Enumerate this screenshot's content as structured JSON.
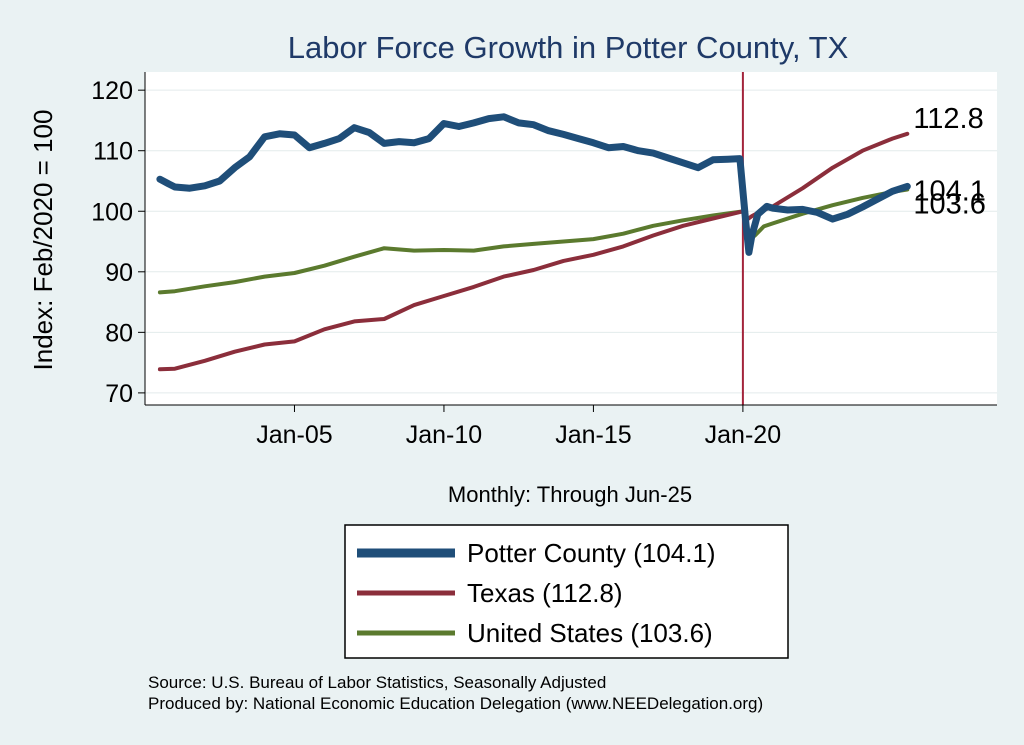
{
  "chart_data": {
    "type": "line",
    "title": "Labor Force Growth in Potter  County, TX",
    "ylabel": "Index: Feb/2020 = 100",
    "xlabel": "Monthly: Through Jun-25",
    "ylim": [
      68,
      123
    ],
    "xlim": [
      2000.0,
      2028.5
    ],
    "yticks": [
      70,
      80,
      90,
      100,
      110,
      120
    ],
    "xticks": [
      {
        "label": "Jan-05",
        "value": 2005.0
      },
      {
        "label": "Jan-10",
        "value": 2010.0
      },
      {
        "label": "Jan-15",
        "value": 2015.0
      },
      {
        "label": "Jan-20",
        "value": 2020.0
      }
    ],
    "reference_line": {
      "x": 2020.0,
      "color": "#a3243b"
    },
    "series": [
      {
        "name": "Potter  County",
        "legend": "Potter  County (104.1)",
        "end_value": "104.1",
        "color": "#1f4e79",
        "width": 7,
        "x": [
          2000.5,
          2000.8,
          2001.0,
          2001.5,
          2002.0,
          2002.5,
          2003.0,
          2003.5,
          2004.0,
          2004.5,
          2005.0,
          2005.5,
          2006.0,
          2006.5,
          2007.0,
          2007.5,
          2008.0,
          2008.5,
          2009.0,
          2009.5,
          2010.0,
          2010.5,
          2011.0,
          2011.5,
          2012.0,
          2012.5,
          2013.0,
          2013.5,
          2014.0,
          2014.5,
          2015.0,
          2015.5,
          2016.0,
          2016.5,
          2017.0,
          2017.5,
          2018.0,
          2018.5,
          2019.0,
          2019.5,
          2019.9,
          2020.1,
          2020.2,
          2020.3,
          2020.5,
          2020.8,
          2021.0,
          2021.5,
          2022.0,
          2022.5,
          2023.0,
          2023.5,
          2024.0,
          2024.5,
          2025.0,
          2025.5
        ],
        "y": [
          105.3,
          104.5,
          104.0,
          103.8,
          104.2,
          105.0,
          107.2,
          109.0,
          112.3,
          112.8,
          112.6,
          110.5,
          111.2,
          112.0,
          113.8,
          113.0,
          111.2,
          111.5,
          111.3,
          112.0,
          114.5,
          114.0,
          114.6,
          115.3,
          115.6,
          114.6,
          114.3,
          113.3,
          112.7,
          112.0,
          111.3,
          110.5,
          110.7,
          110.0,
          109.6,
          108.8,
          108.0,
          107.2,
          108.5,
          108.6,
          108.7,
          98.0,
          93.2,
          96.0,
          99.5,
          100.8,
          100.5,
          100.2,
          100.3,
          99.8,
          98.7,
          99.5,
          100.7,
          102.0,
          103.3,
          104.1
        ]
      },
      {
        "name": "Texas",
        "legend": "Texas (112.8)",
        "end_value": "112.8",
        "color": "#8b2e3b",
        "width": 4,
        "x": [
          2000.5,
          2001.0,
          2002.0,
          2003.0,
          2004.0,
          2005.0,
          2006.0,
          2007.0,
          2008.0,
          2009.0,
          2010.0,
          2011.0,
          2012.0,
          2013.0,
          2014.0,
          2015.0,
          2016.0,
          2017.0,
          2018.0,
          2019.0,
          2020.0,
          2020.1,
          2020.3,
          2020.6,
          2021.0,
          2022.0,
          2023.0,
          2024.0,
          2025.0,
          2025.5
        ],
        "y": [
          73.9,
          74.0,
          75.3,
          76.8,
          78.0,
          78.5,
          80.5,
          81.8,
          82.2,
          84.5,
          86.0,
          87.5,
          89.2,
          90.3,
          91.8,
          92.8,
          94.2,
          96.0,
          97.6,
          98.8,
          100.0,
          98.5,
          99.2,
          100.0,
          100.8,
          103.8,
          107.2,
          110.0,
          112.0,
          112.8
        ]
      },
      {
        "name": "United States",
        "legend": "United States (103.6)",
        "end_value": "103.6",
        "color": "#5b7a2e",
        "width": 4,
        "x": [
          2000.5,
          2001.0,
          2002.0,
          2003.0,
          2004.0,
          2005.0,
          2006.0,
          2007.0,
          2008.0,
          2009.0,
          2010.0,
          2011.0,
          2012.0,
          2013.0,
          2014.0,
          2015.0,
          2016.0,
          2017.0,
          2018.0,
          2019.0,
          2020.0,
          2020.1,
          2020.2,
          2020.4,
          2020.7,
          2021.0,
          2022.0,
          2023.0,
          2024.0,
          2025.0,
          2025.5
        ],
        "y": [
          86.6,
          86.8,
          87.6,
          88.3,
          89.2,
          89.8,
          91.0,
          92.5,
          93.9,
          93.5,
          93.6,
          93.5,
          94.2,
          94.6,
          95.0,
          95.4,
          96.3,
          97.6,
          98.5,
          99.3,
          100.0,
          98.0,
          95.2,
          96.0,
          97.5,
          98.0,
          99.6,
          101.0,
          102.2,
          103.2,
          103.6
        ]
      }
    ]
  },
  "legend_entries": [
    "Potter  County (104.1)",
    "Texas (112.8)",
    "United States (103.6)"
  ],
  "source_line": "Source: U.S. Bureau of Labor Statistics, Seasonally Adjusted",
  "produced_line": "Produced by: National Economic Education Delegation (www.NEEDelegation.org)"
}
